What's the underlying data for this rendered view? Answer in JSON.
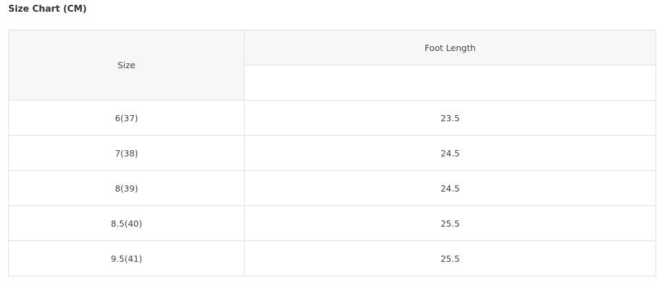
{
  "title": "Size Chart (CM)",
  "headers": {
    "size": "Size",
    "foot_length": "Foot Length"
  },
  "rows": [
    {
      "size": "6(37)",
      "foot_length": "23.5"
    },
    {
      "size": "7(38)",
      "foot_length": "24.5"
    },
    {
      "size": "8(39)",
      "foot_length": "24.5"
    },
    {
      "size": "8.5(40)",
      "foot_length": "25.5"
    },
    {
      "size": "9.5(41)",
      "foot_length": "25.5"
    }
  ]
}
